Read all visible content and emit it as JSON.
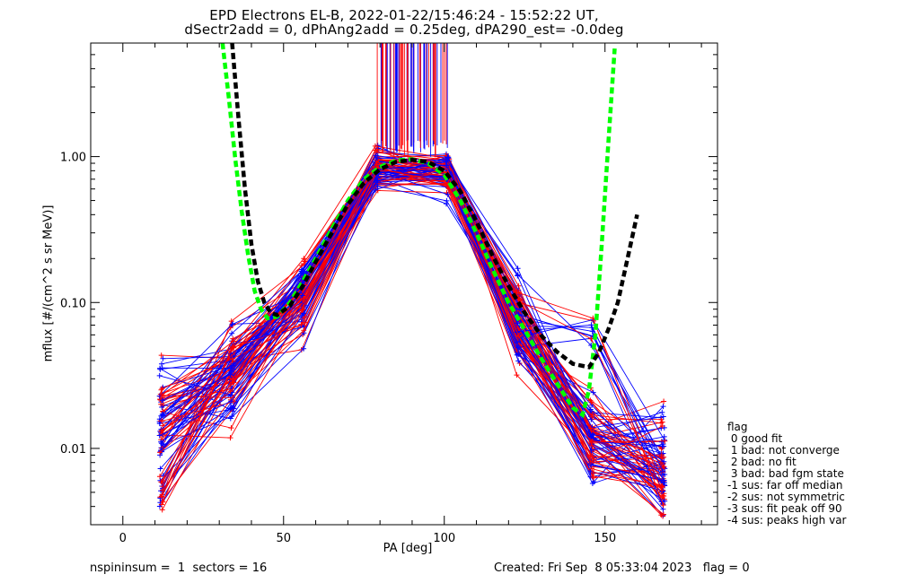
{
  "title": {
    "line1": "EPD Electrons EL-B, 2022-01-22/15:46:24 - 15:52:22 UT,",
    "line2": "dSectr2add = 0, dPhAng2add = 0.25deg, dPA290_est=  -0.0deg"
  },
  "chart_data": {
    "type": "line",
    "xlabel": "PA [deg]",
    "ylabel": "mflux [#/(cm^2 s sr MeV)]",
    "xlim": [
      -10,
      185
    ],
    "ylim": [
      0.003,
      6.0
    ],
    "yscale": "log",
    "x_ticks": [
      0,
      50,
      100,
      150
    ],
    "x_tick_labels": [
      "0",
      "50",
      "100",
      "150"
    ],
    "y_ticks": [
      0.01,
      0.1,
      1.0
    ],
    "y_tick_labels": [
      "0.01",
      "0.10",
      "1.00"
    ],
    "grid": false,
    "pa_bins": [
      12,
      34,
      56,
      79,
      101,
      123,
      146,
      168
    ],
    "series_colors": {
      "red": "#ff0000",
      "blue": "#0000ff"
    },
    "fit_curves": [
      {
        "color": "#00ff00",
        "style": "dashed",
        "x": [
          31,
          33,
          35,
          37,
          39,
          41,
          43,
          45,
          48,
          52,
          56,
          60,
          65,
          70,
          75,
          80,
          85,
          90,
          95,
          100,
          105,
          110,
          115,
          120,
          125,
          130,
          135,
          140,
          143,
          145,
          147,
          149,
          151,
          153
        ],
        "y": [
          6.0,
          2.5,
          0.95,
          0.42,
          0.21,
          0.12,
          0.09,
          0.078,
          0.08,
          0.1,
          0.14,
          0.2,
          0.32,
          0.5,
          0.7,
          0.85,
          0.94,
          0.96,
          0.9,
          0.75,
          0.5,
          0.3,
          0.17,
          0.1,
          0.065,
          0.042,
          0.028,
          0.019,
          0.017,
          0.025,
          0.06,
          0.25,
          1.2,
          5.5
        ]
      },
      {
        "color": "#000000",
        "style": "dashed",
        "x": [
          34,
          36,
          38,
          40,
          42,
          44,
          46,
          48,
          52,
          56,
          60,
          65,
          70,
          75,
          80,
          85,
          90,
          95,
          100,
          105,
          110,
          115,
          120,
          125,
          130,
          135,
          140,
          145,
          148,
          151,
          154,
          157,
          160
        ],
        "y": [
          6.0,
          1.8,
          0.6,
          0.25,
          0.14,
          0.1,
          0.085,
          0.082,
          0.095,
          0.13,
          0.19,
          0.3,
          0.47,
          0.66,
          0.82,
          0.92,
          0.95,
          0.92,
          0.8,
          0.58,
          0.36,
          0.21,
          0.13,
          0.085,
          0.06,
          0.046,
          0.038,
          0.036,
          0.045,
          0.065,
          0.1,
          0.2,
          0.4
        ]
      }
    ]
  },
  "legend": {
    "title": "flag",
    "items": [
      " 0 good fit",
      " 1 bad: not converge",
      " 2 bad: no fit",
      " 3 bad: bad fgm state",
      "-1 sus: far off median",
      "-2 sus: not symmetric",
      "-3 sus: fit peak off 90",
      "-4 sus: peaks high var"
    ]
  },
  "footer": {
    "left": "nspininsum =  1  sectors = 16",
    "right": "Created: Fri Sep  8 05:33:04 2023   flag = 0"
  }
}
